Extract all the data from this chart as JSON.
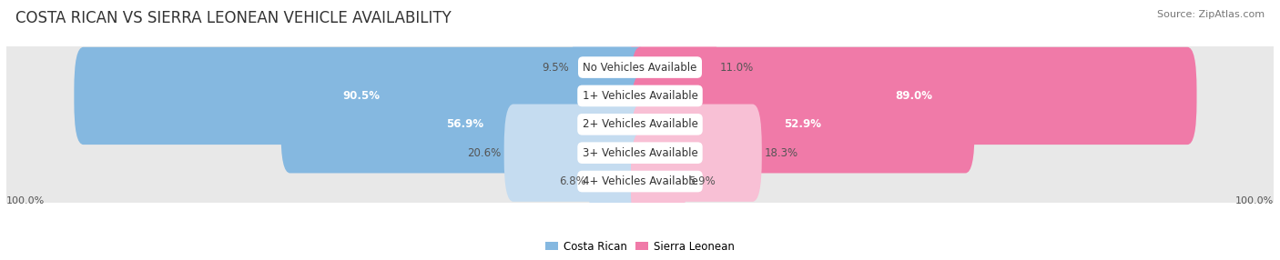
{
  "title": "COSTA RICAN VS SIERRA LEONEAN VEHICLE AVAILABILITY",
  "source": "Source: ZipAtlas.com",
  "categories": [
    "No Vehicles Available",
    "1+ Vehicles Available",
    "2+ Vehicles Available",
    "3+ Vehicles Available",
    "4+ Vehicles Available"
  ],
  "costa_rican": [
    9.5,
    90.5,
    56.9,
    20.6,
    6.8
  ],
  "sierra_leonean": [
    11.0,
    89.0,
    52.9,
    18.3,
    5.9
  ],
  "blue_color": "#85B8E0",
  "pink_color": "#F07AA8",
  "blue_light": "#C5DCF0",
  "pink_light": "#F8C0D5",
  "bg_color": "#FFFFFF",
  "row_bg": "#E8E8E8",
  "max_val": 100.0,
  "title_fontsize": 12,
  "label_fontsize": 8.5,
  "cat_fontsize": 8.5,
  "tick_fontsize": 8,
  "source_fontsize": 8
}
